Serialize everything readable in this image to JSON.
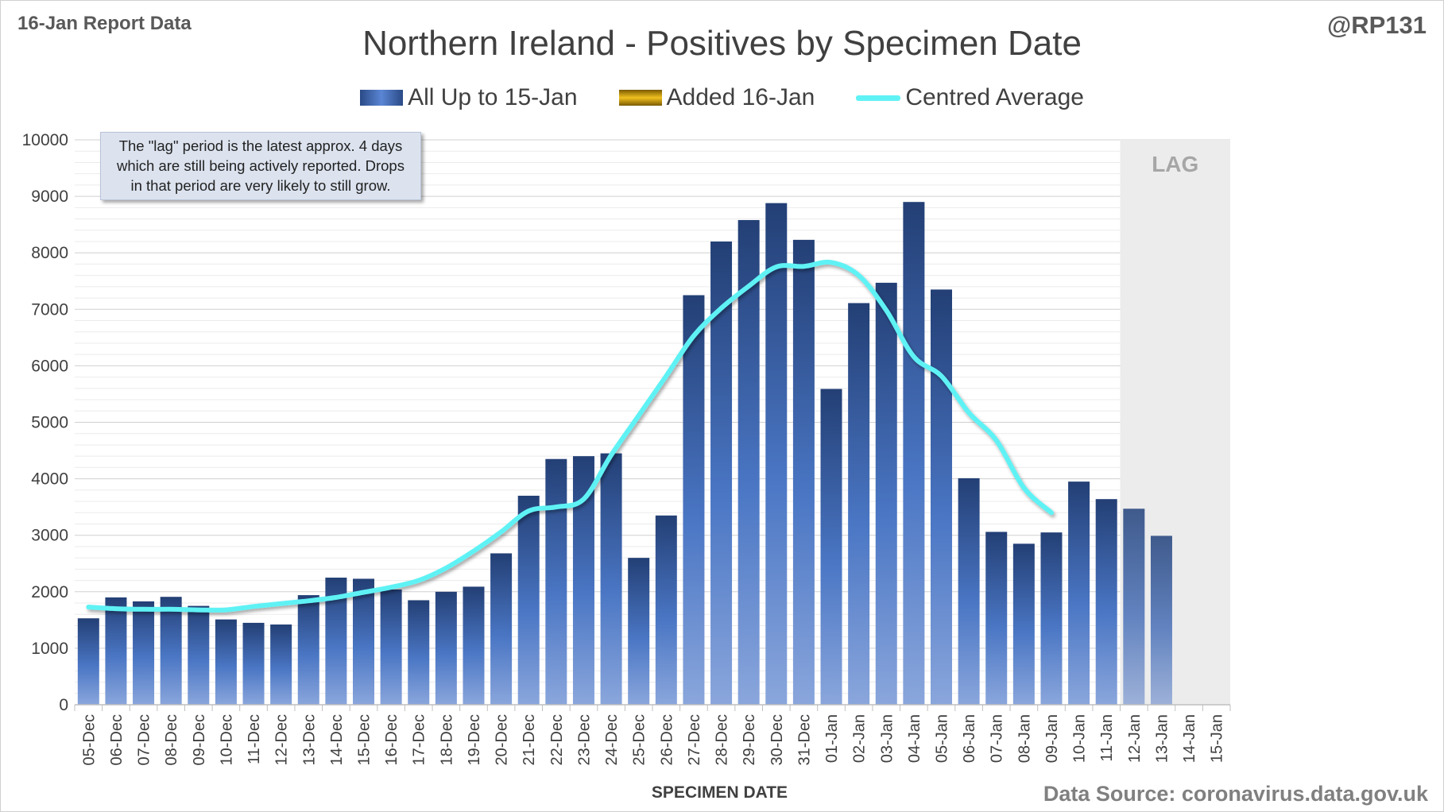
{
  "header": {
    "report_label": "16-Jan Report Data",
    "handle": "@RP131"
  },
  "note": "The \"lag\" period is the latest approx. 4 days\nwhich are still being actively reported. Drops\nin that period are very likely to still grow.",
  "footer": {
    "source": "Data Source: coronavirus.data.gov.uk"
  },
  "chart_data": {
    "type": "bar",
    "title": "Northern Ireland - Positives by Specimen Date",
    "xlabel": "SPECIMEN DATE",
    "ylabel": "",
    "ylim": [
      0,
      10000
    ],
    "yticks": [
      0,
      1000,
      2000,
      3000,
      4000,
      5000,
      6000,
      7000,
      8000,
      9000,
      10000
    ],
    "grid": true,
    "legend_position": "top",
    "categories": [
      "05-Dec",
      "06-Dec",
      "07-Dec",
      "08-Dec",
      "09-Dec",
      "10-Dec",
      "11-Dec",
      "12-Dec",
      "13-Dec",
      "14-Dec",
      "15-Dec",
      "16-Dec",
      "17-Dec",
      "18-Dec",
      "19-Dec",
      "20-Dec",
      "21-Dec",
      "22-Dec",
      "23-Dec",
      "24-Dec",
      "25-Dec",
      "26-Dec",
      "27-Dec",
      "28-Dec",
      "29-Dec",
      "30-Dec",
      "31-Dec",
      "01-Jan",
      "02-Jan",
      "03-Jan",
      "04-Jan",
      "05-Jan",
      "06-Jan",
      "07-Jan",
      "08-Jan",
      "09-Jan",
      "10-Jan",
      "11-Jan",
      "12-Jan",
      "13-Jan",
      "14-Jan",
      "15-Jan"
    ],
    "series": [
      {
        "name": "All Up to 15-Jan",
        "kind": "bar",
        "color": "#2f5597",
        "values": [
          1530,
          1900,
          1830,
          1910,
          1750,
          1510,
          1450,
          1420,
          1940,
          2250,
          2230,
          2040,
          1850,
          2000,
          2090,
          2680,
          3700,
          4350,
          4400,
          4450,
          2600,
          3350,
          7250,
          8200,
          8580,
          8880,
          8230,
          5590,
          7110,
          7470,
          8900,
          7350,
          4010,
          3060,
          2850,
          3050,
          3950,
          3640,
          3470,
          2990,
          0,
          0
        ]
      },
      {
        "name": "Added 16-Jan",
        "kind": "bar",
        "color": "#f0c020",
        "values": [
          0,
          0,
          0,
          0,
          0,
          0,
          0,
          0,
          0,
          0,
          0,
          0,
          0,
          0,
          0,
          0,
          0,
          0,
          0,
          0,
          0,
          0,
          0,
          0,
          0,
          0,
          0,
          0,
          0,
          0,
          0,
          0,
          0,
          0,
          0,
          0,
          0,
          0,
          0,
          0,
          0,
          0
        ]
      },
      {
        "name": "Centred Average",
        "kind": "line",
        "color": "#5ff2f5",
        "values": [
          1730,
          1700,
          1690,
          1690,
          1680,
          1680,
          1740,
          1790,
          1840,
          1900,
          1990,
          2080,
          2200,
          2420,
          2720,
          3060,
          3430,
          3500,
          3640,
          4420,
          5120,
          5820,
          6530,
          7020,
          7410,
          7750,
          7760,
          7830,
          7600,
          6980,
          6160,
          5820,
          5170,
          4680,
          3840,
          3400,
          null,
          null,
          null,
          null,
          null,
          null
        ]
      }
    ],
    "annotations": [
      {
        "label": "LAG",
        "from": "12-Jan",
        "to": "15-Jan"
      }
    ]
  }
}
